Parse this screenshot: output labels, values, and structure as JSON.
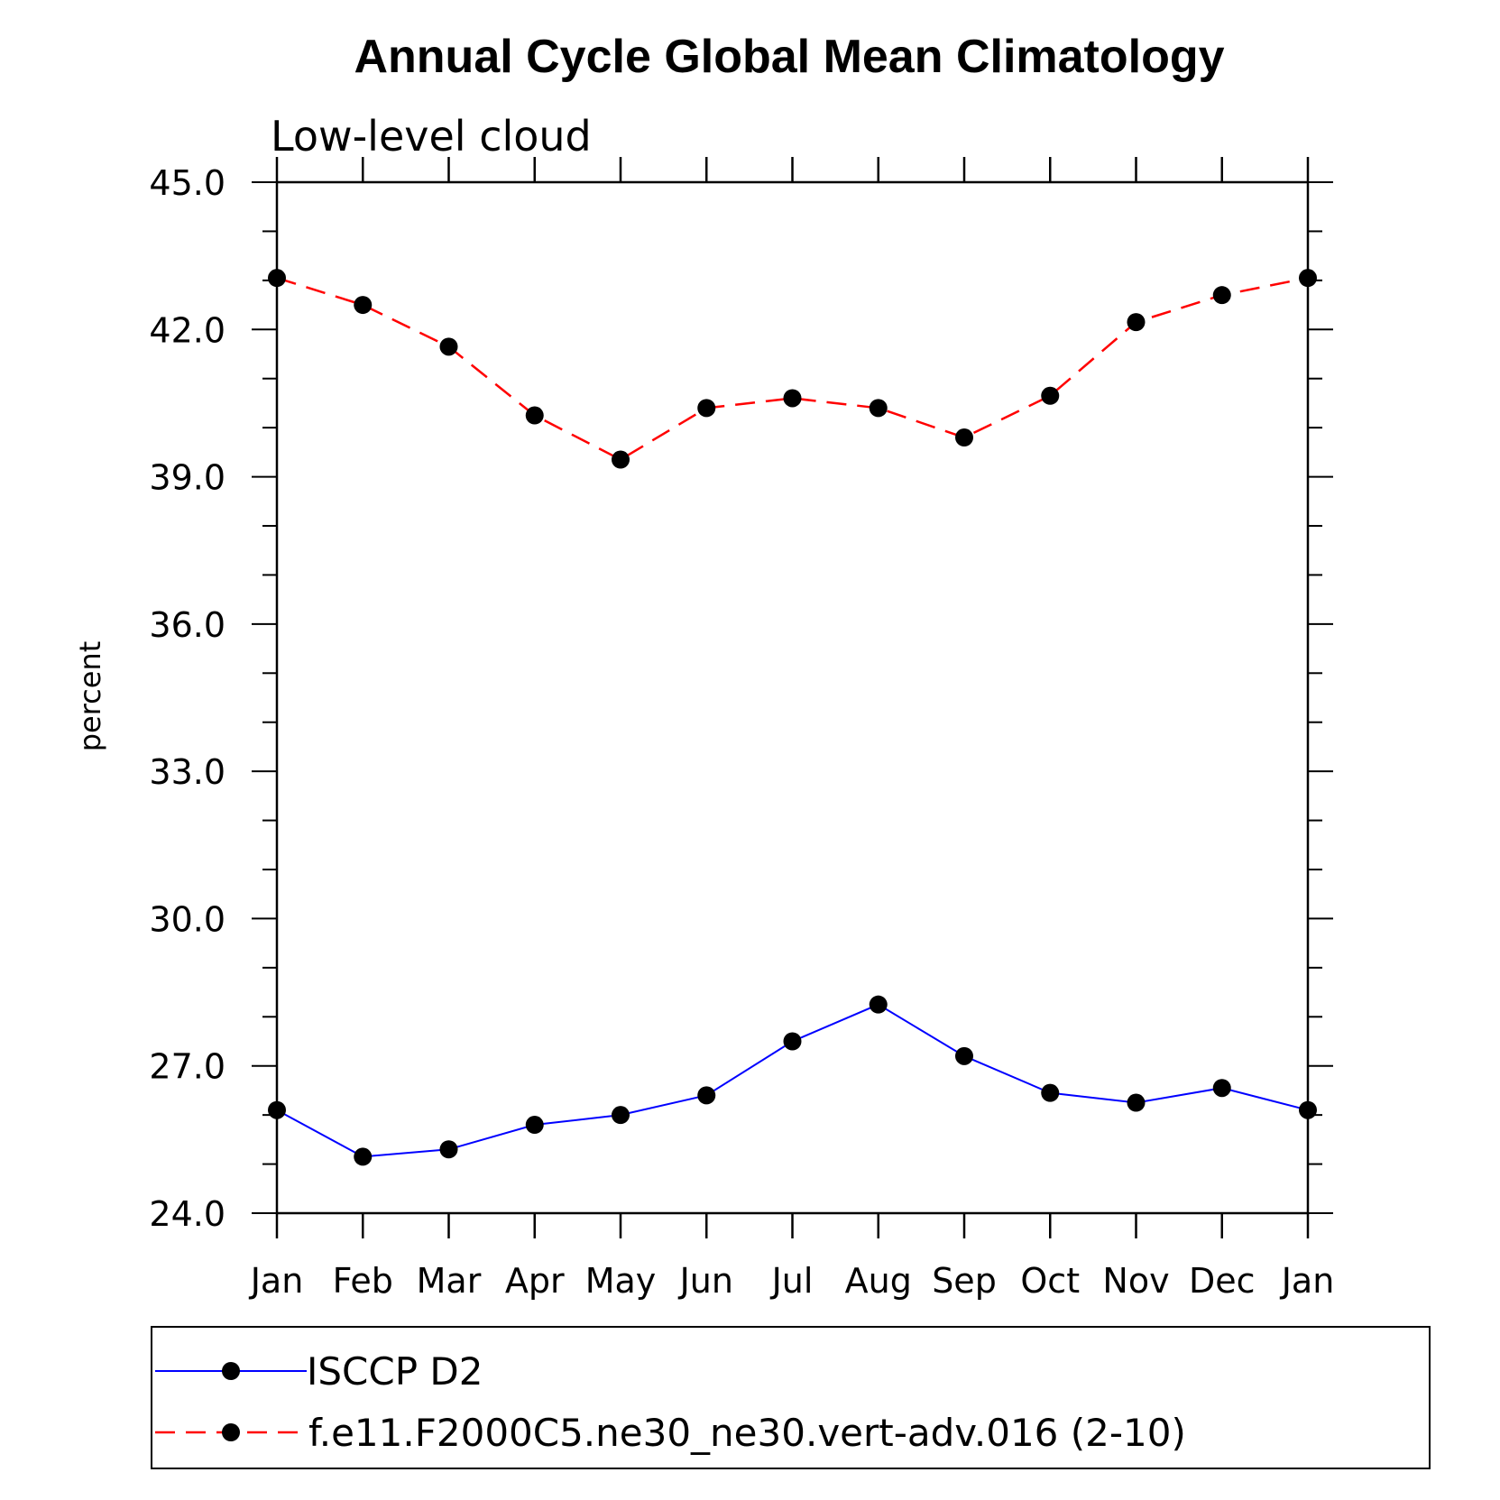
{
  "chart_data": {
    "type": "line",
    "title": "Annual Cycle Global Mean Climatology",
    "subtitle": "Low-level cloud",
    "xlabel": "",
    "ylabel": "percent",
    "categories": [
      "Jan",
      "Feb",
      "Mar",
      "Apr",
      "May",
      "Jun",
      "Jul",
      "Aug",
      "Sep",
      "Oct",
      "Nov",
      "Dec",
      "Jan"
    ],
    "ylim": [
      24.0,
      45.0
    ],
    "yticks": [
      "24.0",
      "27.0",
      "30.0",
      "33.0",
      "36.0",
      "39.0",
      "42.0",
      "45.0"
    ],
    "grid": false,
    "legend_position": "bottom",
    "series": [
      {
        "name": "ISCCP D2",
        "color": "#0000ff",
        "dash": "solid",
        "values": [
          26.1,
          25.15,
          25.3,
          25.8,
          26.0,
          26.4,
          27.5,
          28.25,
          27.2,
          26.45,
          26.25,
          26.55,
          26.1
        ]
      },
      {
        "name": "f.e11.F2000C5.ne30_ne30.vert-adv.016 (2-10)",
        "color": "#ff0000",
        "dash": "dashed",
        "values": [
          43.05,
          42.5,
          41.65,
          40.25,
          39.35,
          40.4,
          40.6,
          40.4,
          39.8,
          40.65,
          42.15,
          42.7,
          43.05
        ]
      }
    ]
  }
}
